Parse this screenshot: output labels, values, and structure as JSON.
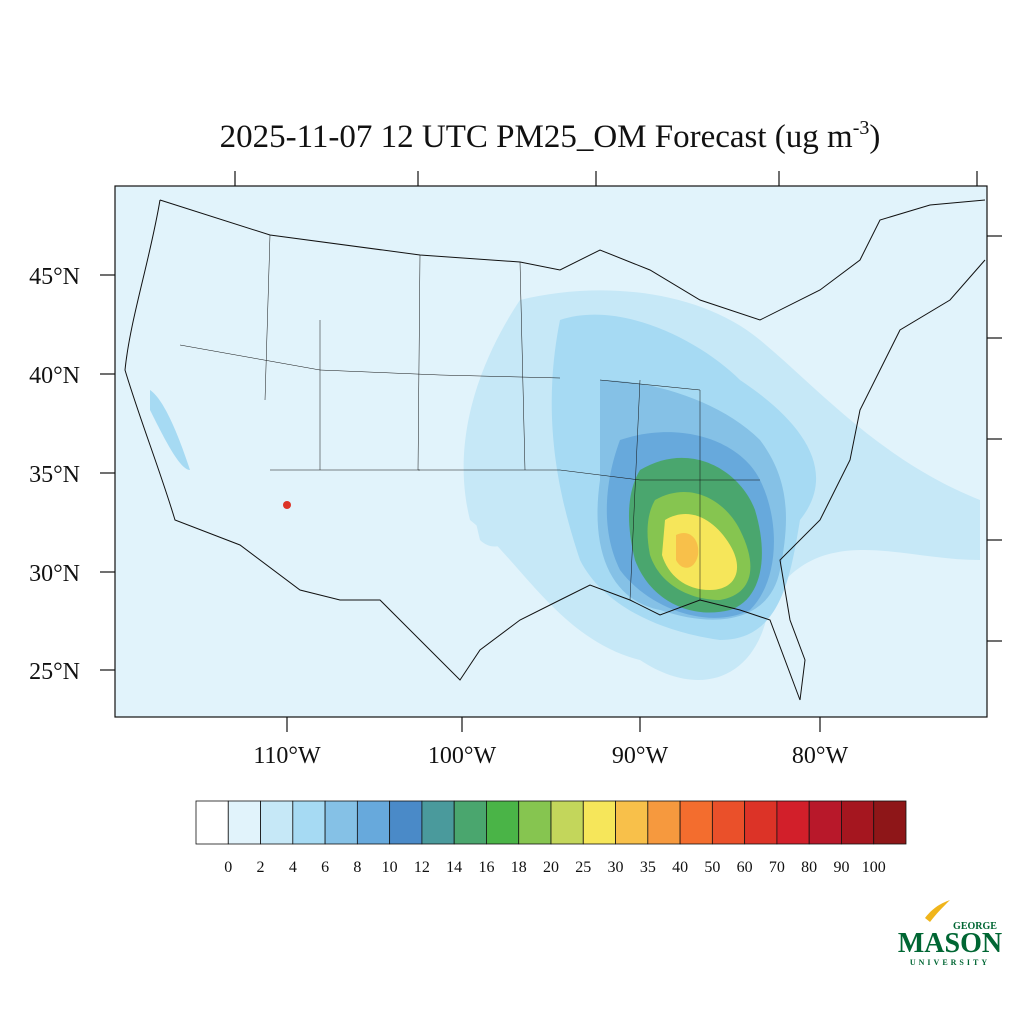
{
  "map": {
    "title": {
      "text": "2025-11-07 12 UTC PM25_OM Forecast (ug m",
      "superscript": "-3",
      "suffix": ")"
    },
    "lat_labels": [
      "45°N",
      "40°N",
      "35°N",
      "30°N",
      "25°N"
    ],
    "lon_labels": [
      "110°W",
      "100°W",
      "90°W",
      "80°W"
    ],
    "colorbar": {
      "levels": [
        0,
        2,
        4,
        6,
        8,
        10,
        12,
        14,
        16,
        18,
        20,
        25,
        30,
        35,
        40,
        50,
        60,
        70,
        80,
        90,
        100
      ],
      "colors": [
        "#ffffff",
        "#e1f3fb",
        "#c6e8f7",
        "#a6daf3",
        "#85c1e6",
        "#67a9dc",
        "#4a8ac8",
        "#4a9a9c",
        "#4aa66e",
        "#4ab447",
        "#86c550",
        "#c3d65b",
        "#f6e65a",
        "#f8c04a",
        "#f6993e",
        "#f36d2e",
        "#ea502a",
        "#dc3327",
        "#d21f2a",
        "#b8182a",
        "#a5161f",
        "#8e1618"
      ]
    },
    "logo": {
      "top": "GEORGE",
      "main": "MASON",
      "bottom": "UNIVERSITY"
    }
  }
}
